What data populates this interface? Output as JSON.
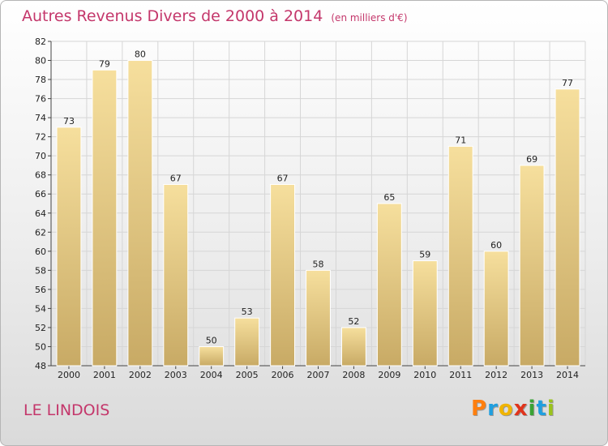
{
  "header": {
    "title": "Autres Revenus Divers de 2000 à 2014",
    "unit": "(en milliers d'€)"
  },
  "footer": {
    "commune": "LE LINDOIS",
    "logo_letters": [
      "P",
      "r",
      "o",
      "x",
      "i",
      "t",
      "i"
    ],
    "logo_colors": [
      "#ff7f0e",
      "#1f9fe0",
      "#f0b400",
      "#e0341c",
      "#3aa335",
      "#1f9fe0",
      "#9ac31c"
    ]
  },
  "colors": {
    "bar_light": "#f6df9d",
    "bar_dark": "#c8aa65",
    "title": "#c4376b",
    "grid": "#d6d6d6"
  },
  "chart_data": {
    "type": "bar",
    "title": "Autres Revenus Divers de 2000 à 2014",
    "subtitle": "(en milliers d'€)",
    "xlabel": "",
    "ylabel": "",
    "categories": [
      "2000",
      "2001",
      "2002",
      "2003",
      "2004",
      "2005",
      "2006",
      "2007",
      "2008",
      "2009",
      "2010",
      "2011",
      "2012",
      "2013",
      "2014"
    ],
    "values": [
      73,
      79,
      80,
      67,
      50,
      53,
      67,
      58,
      52,
      65,
      59,
      71,
      60,
      69,
      77
    ],
    "ylim": [
      48,
      82
    ],
    "yticks": [
      48,
      50,
      52,
      54,
      56,
      58,
      60,
      62,
      64,
      66,
      68,
      70,
      72,
      74,
      76,
      78,
      80,
      82
    ],
    "grid": true,
    "legend": "none"
  }
}
